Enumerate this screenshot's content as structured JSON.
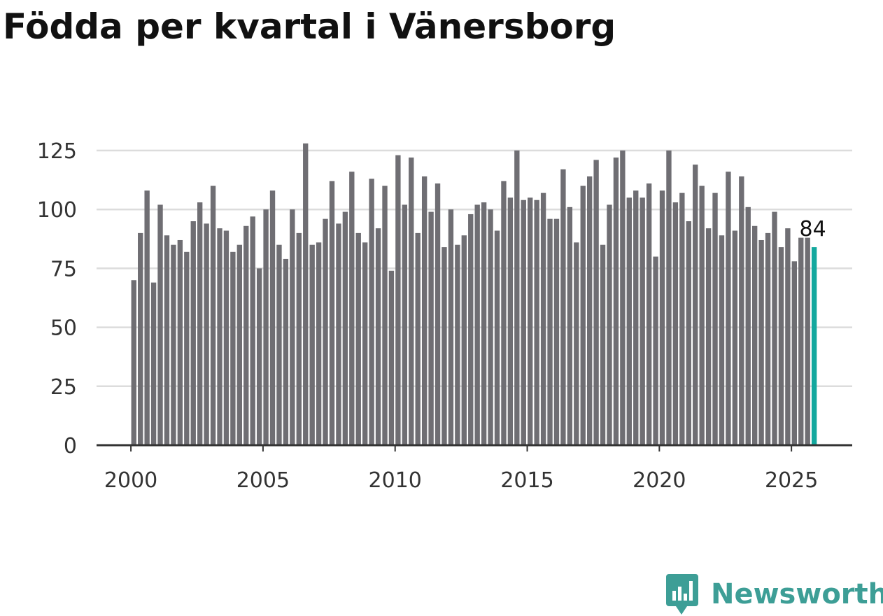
{
  "colors": {
    "bar": "#6f6e73",
    "highlight": "#13a89e",
    "grid": "#dcdcdc",
    "axis": "#333333",
    "brand": "#3d9e96"
  },
  "brand": {
    "name": "Newsworthy",
    "icon": "newsworthy-logo-icon"
  },
  "chart_data": {
    "type": "bar",
    "title": "Födda per kvartal i Vänersborg",
    "xlabel": "",
    "ylabel": "",
    "ylim": [
      0,
      125
    ],
    "yticks": [
      0,
      25,
      50,
      75,
      100,
      125
    ],
    "xticks": [
      2000,
      2005,
      2010,
      2015,
      2020,
      2025
    ],
    "x_start_year": 2000,
    "x_end_year": 2025,
    "x_range": [
      1998.7,
      2027.3
    ],
    "periods_per_year": 4,
    "grid": true,
    "highlight_last": true,
    "data_labels": [
      {
        "index": 103,
        "text": "84"
      }
    ],
    "values": [
      70,
      90,
      108,
      69,
      102,
      89,
      85,
      87,
      82,
      95,
      103,
      94,
      110,
      92,
      91,
      82,
      85,
      93,
      97,
      75,
      100,
      108,
      85,
      79,
      100,
      90,
      128,
      85,
      86,
      96,
      112,
      94,
      99,
      116,
      90,
      86,
      113,
      92,
      110,
      74,
      123,
      102,
      122,
      90,
      114,
      99,
      111,
      84,
      100,
      85,
      89,
      98,
      102,
      103,
      100,
      91,
      112,
      105,
      125,
      104,
      105,
      104,
      107,
      96,
      96,
      117,
      101,
      86,
      110,
      114,
      121,
      85,
      102,
      122,
      125,
      105,
      108,
      105,
      111,
      80,
      108,
      125,
      103,
      107,
      95,
      119,
      110,
      92,
      107,
      89,
      116,
      91,
      114,
      101,
      93,
      87,
      90,
      99,
      84,
      92,
      78,
      88,
      88,
      84
    ]
  }
}
